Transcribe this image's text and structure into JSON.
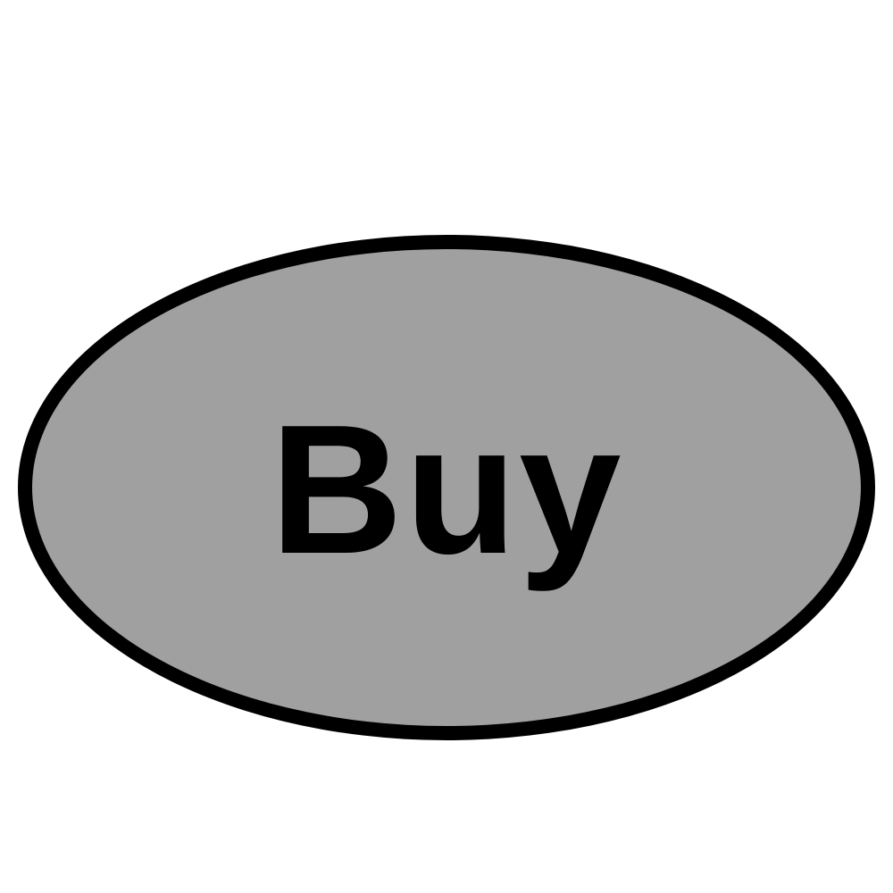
{
  "button": {
    "label": "Buy",
    "fill_color": "#a0a0a0",
    "border_color": "#000000",
    "text_color": "#000000"
  },
  "page": {
    "background_color": "#ffffff"
  }
}
